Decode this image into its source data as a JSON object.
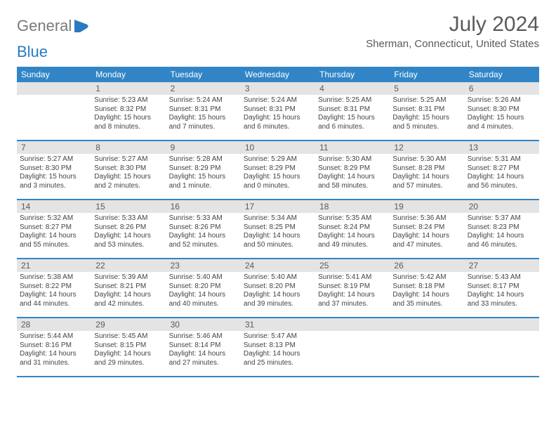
{
  "logo": {
    "text1": "General",
    "text2": "Blue"
  },
  "title": "July 2024",
  "location": "Sherman, Connecticut, United States",
  "colors": {
    "header_bg": "#3185c6",
    "header_fg": "#ffffff",
    "daynum_bg": "#e4e4e4",
    "text": "#5a5a5a",
    "body_text": "#444444",
    "logo_gray": "#7a7a7a",
    "logo_blue": "#2a7ac0"
  },
  "days_of_week": [
    "Sunday",
    "Monday",
    "Tuesday",
    "Wednesday",
    "Thursday",
    "Friday",
    "Saturday"
  ],
  "weeks": [
    [
      {
        "n": "",
        "lines": []
      },
      {
        "n": "1",
        "lines": [
          "Sunrise: 5:23 AM",
          "Sunset: 8:32 PM",
          "Daylight: 15 hours",
          "and 8 minutes."
        ]
      },
      {
        "n": "2",
        "lines": [
          "Sunrise: 5:24 AM",
          "Sunset: 8:31 PM",
          "Daylight: 15 hours",
          "and 7 minutes."
        ]
      },
      {
        "n": "3",
        "lines": [
          "Sunrise: 5:24 AM",
          "Sunset: 8:31 PM",
          "Daylight: 15 hours",
          "and 6 minutes."
        ]
      },
      {
        "n": "4",
        "lines": [
          "Sunrise: 5:25 AM",
          "Sunset: 8:31 PM",
          "Daylight: 15 hours",
          "and 6 minutes."
        ]
      },
      {
        "n": "5",
        "lines": [
          "Sunrise: 5:25 AM",
          "Sunset: 8:31 PM",
          "Daylight: 15 hours",
          "and 5 minutes."
        ]
      },
      {
        "n": "6",
        "lines": [
          "Sunrise: 5:26 AM",
          "Sunset: 8:30 PM",
          "Daylight: 15 hours",
          "and 4 minutes."
        ]
      }
    ],
    [
      {
        "n": "7",
        "lines": [
          "Sunrise: 5:27 AM",
          "Sunset: 8:30 PM",
          "Daylight: 15 hours",
          "and 3 minutes."
        ]
      },
      {
        "n": "8",
        "lines": [
          "Sunrise: 5:27 AM",
          "Sunset: 8:30 PM",
          "Daylight: 15 hours",
          "and 2 minutes."
        ]
      },
      {
        "n": "9",
        "lines": [
          "Sunrise: 5:28 AM",
          "Sunset: 8:29 PM",
          "Daylight: 15 hours",
          "and 1 minute."
        ]
      },
      {
        "n": "10",
        "lines": [
          "Sunrise: 5:29 AM",
          "Sunset: 8:29 PM",
          "Daylight: 15 hours",
          "and 0 minutes."
        ]
      },
      {
        "n": "11",
        "lines": [
          "Sunrise: 5:30 AM",
          "Sunset: 8:29 PM",
          "Daylight: 14 hours",
          "and 58 minutes."
        ]
      },
      {
        "n": "12",
        "lines": [
          "Sunrise: 5:30 AM",
          "Sunset: 8:28 PM",
          "Daylight: 14 hours",
          "and 57 minutes."
        ]
      },
      {
        "n": "13",
        "lines": [
          "Sunrise: 5:31 AM",
          "Sunset: 8:27 PM",
          "Daylight: 14 hours",
          "and 56 minutes."
        ]
      }
    ],
    [
      {
        "n": "14",
        "lines": [
          "Sunrise: 5:32 AM",
          "Sunset: 8:27 PM",
          "Daylight: 14 hours",
          "and 55 minutes."
        ]
      },
      {
        "n": "15",
        "lines": [
          "Sunrise: 5:33 AM",
          "Sunset: 8:26 PM",
          "Daylight: 14 hours",
          "and 53 minutes."
        ]
      },
      {
        "n": "16",
        "lines": [
          "Sunrise: 5:33 AM",
          "Sunset: 8:26 PM",
          "Daylight: 14 hours",
          "and 52 minutes."
        ]
      },
      {
        "n": "17",
        "lines": [
          "Sunrise: 5:34 AM",
          "Sunset: 8:25 PM",
          "Daylight: 14 hours",
          "and 50 minutes."
        ]
      },
      {
        "n": "18",
        "lines": [
          "Sunrise: 5:35 AM",
          "Sunset: 8:24 PM",
          "Daylight: 14 hours",
          "and 49 minutes."
        ]
      },
      {
        "n": "19",
        "lines": [
          "Sunrise: 5:36 AM",
          "Sunset: 8:24 PM",
          "Daylight: 14 hours",
          "and 47 minutes."
        ]
      },
      {
        "n": "20",
        "lines": [
          "Sunrise: 5:37 AM",
          "Sunset: 8:23 PM",
          "Daylight: 14 hours",
          "and 46 minutes."
        ]
      }
    ],
    [
      {
        "n": "21",
        "lines": [
          "Sunrise: 5:38 AM",
          "Sunset: 8:22 PM",
          "Daylight: 14 hours",
          "and 44 minutes."
        ]
      },
      {
        "n": "22",
        "lines": [
          "Sunrise: 5:39 AM",
          "Sunset: 8:21 PM",
          "Daylight: 14 hours",
          "and 42 minutes."
        ]
      },
      {
        "n": "23",
        "lines": [
          "Sunrise: 5:40 AM",
          "Sunset: 8:20 PM",
          "Daylight: 14 hours",
          "and 40 minutes."
        ]
      },
      {
        "n": "24",
        "lines": [
          "Sunrise: 5:40 AM",
          "Sunset: 8:20 PM",
          "Daylight: 14 hours",
          "and 39 minutes."
        ]
      },
      {
        "n": "25",
        "lines": [
          "Sunrise: 5:41 AM",
          "Sunset: 8:19 PM",
          "Daylight: 14 hours",
          "and 37 minutes."
        ]
      },
      {
        "n": "26",
        "lines": [
          "Sunrise: 5:42 AM",
          "Sunset: 8:18 PM",
          "Daylight: 14 hours",
          "and 35 minutes."
        ]
      },
      {
        "n": "27",
        "lines": [
          "Sunrise: 5:43 AM",
          "Sunset: 8:17 PM",
          "Daylight: 14 hours",
          "and 33 minutes."
        ]
      }
    ],
    [
      {
        "n": "28",
        "lines": [
          "Sunrise: 5:44 AM",
          "Sunset: 8:16 PM",
          "Daylight: 14 hours",
          "and 31 minutes."
        ]
      },
      {
        "n": "29",
        "lines": [
          "Sunrise: 5:45 AM",
          "Sunset: 8:15 PM",
          "Daylight: 14 hours",
          "and 29 minutes."
        ]
      },
      {
        "n": "30",
        "lines": [
          "Sunrise: 5:46 AM",
          "Sunset: 8:14 PM",
          "Daylight: 14 hours",
          "and 27 minutes."
        ]
      },
      {
        "n": "31",
        "lines": [
          "Sunrise: 5:47 AM",
          "Sunset: 8:13 PM",
          "Daylight: 14 hours",
          "and 25 minutes."
        ]
      },
      {
        "n": "",
        "lines": []
      },
      {
        "n": "",
        "lines": []
      },
      {
        "n": "",
        "lines": []
      }
    ]
  ]
}
